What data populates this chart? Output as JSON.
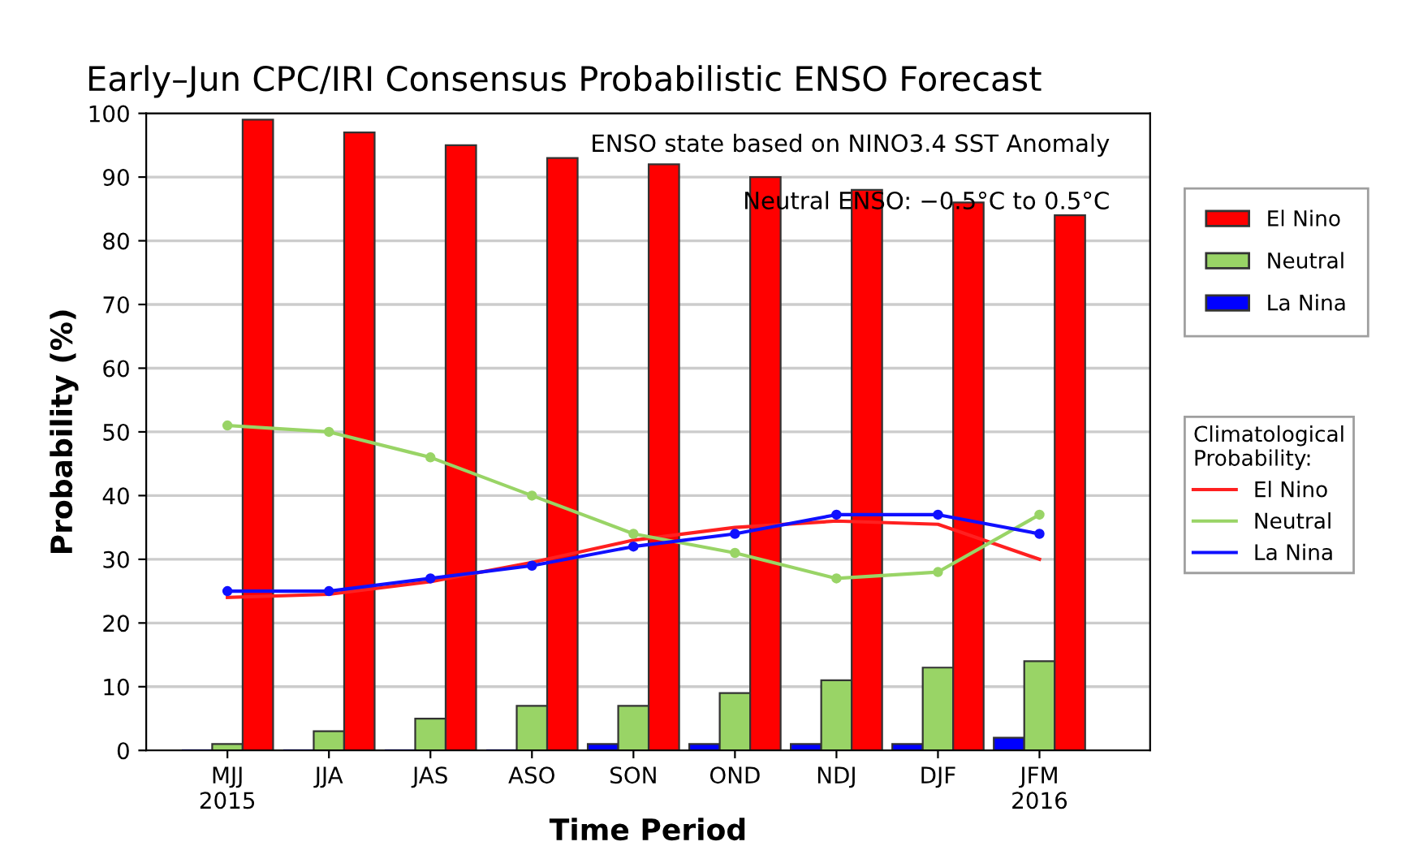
{
  "chart_data": {
    "type": "bar",
    "title": "Early–Jun CPC/IRI Consensus Probabilistic ENSO Forecast",
    "xlabel": "Time Period",
    "ylabel": "Probability (%)",
    "categories": [
      "MJJ\n2015",
      "JJA",
      "JAS",
      "ASO",
      "SON",
      "OND",
      "NDJ",
      "DJF",
      "JFM\n2016"
    ],
    "series": [
      {
        "name": "La Nina",
        "color": "#0000ff",
        "values": [
          0,
          0,
          0,
          0,
          1,
          1,
          1,
          1,
          2
        ]
      },
      {
        "name": "Neutral",
        "color": "#99d466",
        "values": [
          1,
          3,
          5,
          7,
          7,
          9,
          11,
          13,
          14
        ]
      },
      {
        "name": "El Nino",
        "color": "#ff0000",
        "values": [
          99,
          97,
          95,
          93,
          92,
          90,
          88,
          86,
          84
        ]
      },
      {
        "name": "El Nino",
        "type": "line",
        "color": "#ff2020",
        "marker": "none",
        "values": [
          24,
          24.5,
          26.5,
          29.5,
          33,
          35,
          36,
          35.5,
          30
        ]
      },
      {
        "name": "Neutral",
        "type": "line",
        "color": "#99d466",
        "marker": "circle",
        "values": [
          51,
          50,
          46,
          40,
          34,
          31,
          27,
          28,
          37
        ]
      },
      {
        "name": "La Nina",
        "type": "line",
        "color": "#1010ff",
        "marker": "circle",
        "values": [
          25,
          25,
          27,
          29,
          32,
          34,
          37,
          37,
          34
        ]
      }
    ],
    "legend_title": "Climatological\nProbability:",
    "legend": "right",
    "ylim": [
      0,
      100
    ],
    "yticks": [
      0,
      10,
      20,
      30,
      40,
      50,
      60,
      70,
      80,
      90,
      100
    ],
    "grid": "y",
    "annotations": [
      "ENSO state based on NINO3.4 SST Anomaly",
      "Neutral ENSO: −0.5°C to 0.5°C"
    ]
  }
}
